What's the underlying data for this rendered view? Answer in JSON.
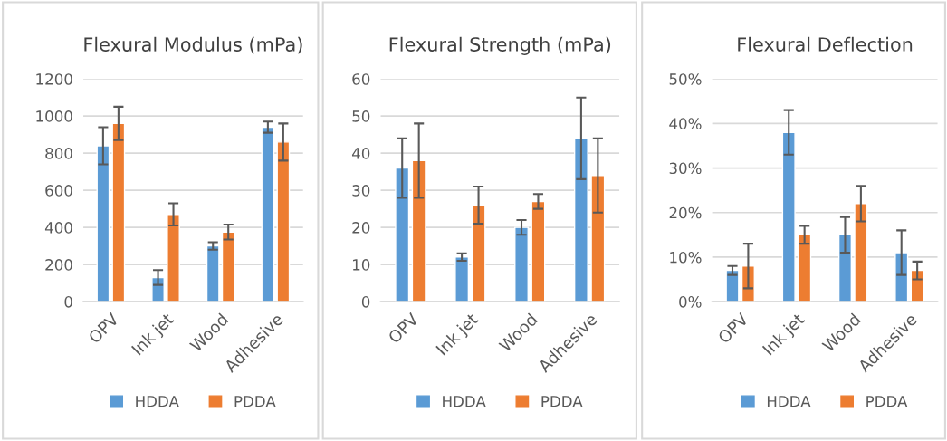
{
  "chart_data": [
    {
      "type": "bar",
      "title": "Flexural Modulus (mPa)",
      "categories": [
        "OPV",
        "Ink jet",
        "Wood",
        "Adhesive"
      ],
      "series": [
        {
          "name": "HDDA",
          "color": "#5b9bd5",
          "values": [
            840,
            130,
            300,
            940
          ],
          "errors": [
            100,
            40,
            20,
            30
          ]
        },
        {
          "name": "PDDA",
          "color": "#ed7d31",
          "values": [
            960,
            470,
            375,
            860
          ],
          "errors": [
            90,
            60,
            40,
            100
          ]
        }
      ],
      "ylim": [
        0,
        1200
      ],
      "yticks": [
        0,
        200,
        400,
        600,
        800,
        1000,
        1200
      ],
      "grid": "y",
      "legend": "bottom"
    },
    {
      "type": "bar",
      "title": "Flexural Strength (mPa)",
      "categories": [
        "OPV",
        "Ink jet",
        "Wood",
        "Adhesive"
      ],
      "series": [
        {
          "name": "HDDA",
          "color": "#5b9bd5",
          "values": [
            36,
            12,
            20,
            44
          ],
          "errors": [
            8,
            1,
            2,
            11
          ]
        },
        {
          "name": "PDDA",
          "color": "#ed7d31",
          "values": [
            38,
            26,
            27,
            34
          ],
          "errors": [
            10,
            5,
            2,
            10
          ]
        }
      ],
      "ylim": [
        0,
        60
      ],
      "yticks": [
        0,
        10,
        20,
        30,
        40,
        50,
        60
      ],
      "grid": "y",
      "legend": "bottom"
    },
    {
      "type": "bar",
      "title": "Flexural Deflection",
      "categories": [
        "OPV",
        "Ink jet",
        "Wood",
        "Adhesive"
      ],
      "series": [
        {
          "name": "HDDA",
          "color": "#5b9bd5",
          "values": [
            7,
            38,
            15,
            11
          ],
          "errors": [
            1,
            5,
            4,
            5
          ]
        },
        {
          "name": "PDDA",
          "color": "#ed7d31",
          "values": [
            8,
            15,
            22,
            7
          ],
          "errors": [
            5,
            2,
            4,
            2
          ]
        }
      ],
      "ylim": [
        0,
        50
      ],
      "yticks": [
        {
          "value": 0,
          "label": "0%"
        },
        {
          "value": 10,
          "label": "10%"
        },
        {
          "value": 20,
          "label": "20%"
        },
        {
          "value": 30,
          "label": "30%"
        },
        {
          "value": 40,
          "label": "40%"
        },
        {
          "value": 50,
          "label": "50%"
        }
      ],
      "grid": "y",
      "legend": "bottom"
    }
  ]
}
